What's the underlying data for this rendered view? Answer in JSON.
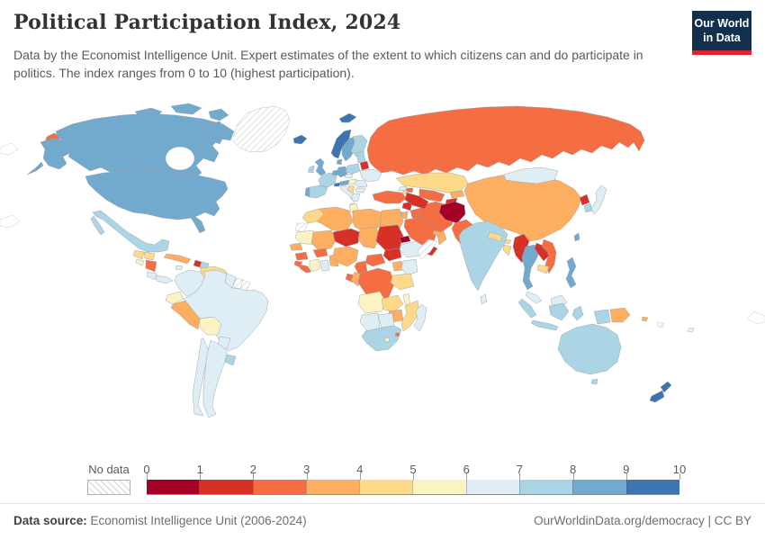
{
  "header": {
    "title": "Political Participation Index, 2024",
    "subtitle": "Data by the Economist Intelligence Unit. Expert estimates of the extent to which citizens can and do participate in politics. The index ranges from 0 to 10 (highest participation).",
    "logo": {
      "line1": "Our World",
      "line2": "in Data",
      "bg_color": "#12304e",
      "stripe_color": "#e0232e"
    }
  },
  "legend": {
    "no_data_label": "No data",
    "tick_labels": [
      "0",
      "1",
      "2",
      "3",
      "4",
      "5",
      "6",
      "7",
      "8",
      "9",
      "10"
    ],
    "bins": [
      "0-1",
      "1-2",
      "2-3",
      "3-4",
      "4-5",
      "5-6",
      "6-7",
      "7-8",
      "8-9",
      "9-10"
    ],
    "bin_colors": {
      "0-1": "#a50026",
      "1-2": "#d73027",
      "2-3": "#f46d43",
      "3-4": "#fdae61",
      "4-5": "#fdda8a",
      "5-6": "#fbf4c2",
      "6-7": "#dfeef4",
      "7-8": "#abd5e5",
      "8-9": "#72aace",
      "9-10": "#3e74b0"
    }
  },
  "footer": {
    "source_label": "Data source:",
    "source_text": " Economist Intelligence Unit (2006-2024)",
    "link_text": "OurWorldinData.org/democracy",
    "separator": " | ",
    "license_text": "CC BY"
  },
  "chart_data": {
    "type": "choropleth_map",
    "title": "Political Participation Index, 2024",
    "value_range": [
      0,
      10
    ],
    "legend_position": "bottom",
    "regions": [
      {
        "id": "canada",
        "name": "Canada",
        "bin": "8-9"
      },
      {
        "id": "usa",
        "name": "United States",
        "bin": "8-9"
      },
      {
        "id": "greenland",
        "name": "Greenland",
        "bin": "no-data"
      },
      {
        "id": "chukotka",
        "name": "Russia (Chukotka)",
        "bin": "2-3"
      },
      {
        "id": "mexico",
        "name": "Mexico",
        "bin": "7-8"
      },
      {
        "id": "guatemala",
        "name": "Guatemala",
        "bin": "4-5"
      },
      {
        "id": "honduras",
        "name": "Honduras",
        "bin": "4-5"
      },
      {
        "id": "el-salvador",
        "name": "El Salvador",
        "bin": "5-6"
      },
      {
        "id": "nicaragua",
        "name": "Nicaragua",
        "bin": "2-3"
      },
      {
        "id": "costa-rica",
        "name": "Costa Rica",
        "bin": "6-7"
      },
      {
        "id": "panama",
        "name": "Panama",
        "bin": "6-7"
      },
      {
        "id": "cuba",
        "name": "Cuba",
        "bin": "3-4"
      },
      {
        "id": "jamaica",
        "name": "Jamaica",
        "bin": "6-7"
      },
      {
        "id": "haiti",
        "name": "Haiti",
        "bin": "1-2"
      },
      {
        "id": "dominican-republic",
        "name": "Dominican Republic",
        "bin": "7-8"
      },
      {
        "id": "colombia",
        "name": "Colombia",
        "bin": "6-7"
      },
      {
        "id": "venezuela",
        "name": "Venezuela",
        "bin": "4-5"
      },
      {
        "id": "guyana",
        "name": "Guyana",
        "bin": "6-7"
      },
      {
        "id": "suriname",
        "name": "Suriname",
        "bin": "no-data"
      },
      {
        "id": "french-guiana",
        "name": "French Guiana",
        "bin": "no-data"
      },
      {
        "id": "ecuador",
        "name": "Ecuador",
        "bin": "5-6"
      },
      {
        "id": "peru",
        "name": "Peru",
        "bin": "3-4"
      },
      {
        "id": "bolivia",
        "name": "Bolivia",
        "bin": "5-6"
      },
      {
        "id": "brazil",
        "name": "Brazil",
        "bin": "6-7"
      },
      {
        "id": "paraguay",
        "name": "Paraguay",
        "bin": "6-7"
      },
      {
        "id": "uruguay",
        "name": "Uruguay",
        "bin": "7-8"
      },
      {
        "id": "argentina",
        "name": "Argentina",
        "bin": "6-7"
      },
      {
        "id": "chile",
        "name": "Chile",
        "bin": "6-7"
      },
      {
        "id": "iceland",
        "name": "Iceland",
        "bin": "9-10"
      },
      {
        "id": "svalbard",
        "name": "Svalbard",
        "bin": "9-10"
      },
      {
        "id": "norway",
        "name": "Norway",
        "bin": "9-10"
      },
      {
        "id": "sweden",
        "name": "Sweden",
        "bin": "8-9"
      },
      {
        "id": "finland",
        "name": "Finland",
        "bin": "7-8"
      },
      {
        "id": "denmark",
        "name": "Denmark",
        "bin": "8-9"
      },
      {
        "id": "united-kingdom",
        "name": "United Kingdom",
        "bin": "8-9"
      },
      {
        "id": "ireland",
        "name": "Ireland",
        "bin": "7-8"
      },
      {
        "id": "portugal",
        "name": "Portugal",
        "bin": "8-9"
      },
      {
        "id": "spain",
        "name": "Spain",
        "bin": "7-8"
      },
      {
        "id": "france",
        "name": "France",
        "bin": "7-8"
      },
      {
        "id": "belgium-netherlands",
        "name": "Belgium/Netherlands",
        "bin": "8-9"
      },
      {
        "id": "germany",
        "name": "Germany",
        "bin": "8-9"
      },
      {
        "id": "switzerland",
        "name": "Switzerland",
        "bin": "9-10"
      },
      {
        "id": "austria",
        "name": "Austria",
        "bin": "8-9"
      },
      {
        "id": "italy",
        "name": "Italy",
        "bin": "6-7"
      },
      {
        "id": "czechia",
        "name": "Czechia",
        "bin": "6-7"
      },
      {
        "id": "poland",
        "name": "Poland",
        "bin": "7-8"
      },
      {
        "id": "baltics",
        "name": "Baltic states",
        "bin": "7-8"
      },
      {
        "id": "belarus",
        "name": "Belarus",
        "bin": "1-2"
      },
      {
        "id": "ukraine",
        "name": "Ukraine",
        "bin": "6-7"
      },
      {
        "id": "hungary",
        "name": "Hungary",
        "bin": "5-6"
      },
      {
        "id": "romania",
        "name": "Romania",
        "bin": "6-7"
      },
      {
        "id": "balkans",
        "name": "Western Balkans",
        "bin": "4-5"
      },
      {
        "id": "bulgaria",
        "name": "Bulgaria",
        "bin": "6-7"
      },
      {
        "id": "greece",
        "name": "Greece",
        "bin": "6-7"
      },
      {
        "id": "russia",
        "name": "Russia",
        "bin": "2-3"
      },
      {
        "id": "turkey",
        "name": "Turkey",
        "bin": "2-3"
      },
      {
        "id": "georgia",
        "name": "Georgia",
        "bin": "6-7"
      },
      {
        "id": "azerbaijan",
        "name": "Azerbaijan",
        "bin": "2-3"
      },
      {
        "id": "armenia",
        "name": "Armenia",
        "bin": "4-5"
      },
      {
        "id": "syria",
        "name": "Syria",
        "bin": "1-2"
      },
      {
        "id": "israel",
        "name": "Israel",
        "bin": "7-8"
      },
      {
        "id": "jordan",
        "name": "Jordan",
        "bin": "3-4"
      },
      {
        "id": "iraq",
        "name": "Iraq",
        "bin": "2-3"
      },
      {
        "id": "iran",
        "name": "Iran",
        "bin": "2-3"
      },
      {
        "id": "saudi-arabia",
        "name": "Saudi Arabia",
        "bin": "2-3"
      },
      {
        "id": "yemen",
        "name": "Yemen",
        "bin": "1-2"
      },
      {
        "id": "oman",
        "name": "Oman",
        "bin": "3-4"
      },
      {
        "id": "uae",
        "name": "United Arab Emirates",
        "bin": "3-4"
      },
      {
        "id": "kazakhstan",
        "name": "Kazakhstan",
        "bin": "4-5"
      },
      {
        "id": "uzbekistan",
        "name": "Uzbekistan",
        "bin": "2-3"
      },
      {
        "id": "turkmenistan",
        "name": "Turkmenistan",
        "bin": "1-2"
      },
      {
        "id": "kyrgyzstan",
        "name": "Kyrgyzstan",
        "bin": "3-4"
      },
      {
        "id": "tajikistan",
        "name": "Tajikistan",
        "bin": "1-2"
      },
      {
        "id": "afghanistan",
        "name": "Afghanistan",
        "bin": "0-1"
      },
      {
        "id": "pakistan",
        "name": "Pakistan",
        "bin": "2-3"
      },
      {
        "id": "india",
        "name": "India",
        "bin": "7-8"
      },
      {
        "id": "nepal",
        "name": "Nepal",
        "bin": "4-5"
      },
      {
        "id": "bhutan",
        "name": "Bhutan",
        "bin": "4-5"
      },
      {
        "id": "bangladesh",
        "name": "Bangladesh",
        "bin": "4-5"
      },
      {
        "id": "sri-lanka",
        "name": "Sri Lanka",
        "bin": "6-7"
      },
      {
        "id": "china",
        "name": "China",
        "bin": "3-4"
      },
      {
        "id": "mongolia",
        "name": "Mongolia",
        "bin": "6-7"
      },
      {
        "id": "north-korea",
        "name": "North Korea",
        "bin": "1-2"
      },
      {
        "id": "south-korea",
        "name": "South Korea",
        "bin": "7-8"
      },
      {
        "id": "japan",
        "name": "Japan",
        "bin": "6-7"
      },
      {
        "id": "taiwan",
        "name": "Taiwan",
        "bin": "8-9"
      },
      {
        "id": "myanmar",
        "name": "Myanmar",
        "bin": "1-2"
      },
      {
        "id": "thailand",
        "name": "Thailand",
        "bin": "8-9"
      },
      {
        "id": "laos",
        "name": "Laos",
        "bin": "1-2"
      },
      {
        "id": "vietnam",
        "name": "Vietnam",
        "bin": "2-3"
      },
      {
        "id": "cambodia",
        "name": "Cambodia",
        "bin": "4-5"
      },
      {
        "id": "malaysia",
        "name": "Malaysia",
        "bin": "6-7"
      },
      {
        "id": "indonesia",
        "name": "Indonesia",
        "bin": "7-8"
      },
      {
        "id": "philippines",
        "name": "Philippines",
        "bin": "8-9"
      },
      {
        "id": "papua-new-guinea",
        "name": "Papua New Guinea",
        "bin": "3-4"
      },
      {
        "id": "morocco",
        "name": "Morocco",
        "bin": "4-5"
      },
      {
        "id": "western-sahara",
        "name": "Western Sahara",
        "bin": "no-data"
      },
      {
        "id": "algeria",
        "name": "Algeria",
        "bin": "3-4"
      },
      {
        "id": "tunisia",
        "name": "Tunisia",
        "bin": "5-6"
      },
      {
        "id": "libya",
        "name": "Libya",
        "bin": "3-4"
      },
      {
        "id": "egypt",
        "name": "Egypt",
        "bin": "3-4"
      },
      {
        "id": "mauritania",
        "name": "Mauritania",
        "bin": "5-6"
      },
      {
        "id": "senegal",
        "name": "Senegal",
        "bin": "3-4"
      },
      {
        "id": "guinea",
        "name": "Guinea",
        "bin": "2-3"
      },
      {
        "id": "sierra-leone",
        "name": "Sierra Leone",
        "bin": "2-3"
      },
      {
        "id": "liberia",
        "name": "Liberia",
        "bin": "2-3"
      },
      {
        "id": "ivory-coast",
        "name": "Cote d'Ivoire",
        "bin": "5-6"
      },
      {
        "id": "ghana",
        "name": "Ghana",
        "bin": "6-7"
      },
      {
        "id": "burkina-faso",
        "name": "Burkina Faso",
        "bin": "2-3"
      },
      {
        "id": "togo-benin",
        "name": "Togo/Benin",
        "bin": "3-4"
      },
      {
        "id": "mali",
        "name": "Mali",
        "bin": "3-4"
      },
      {
        "id": "niger",
        "name": "Niger",
        "bin": "1-2"
      },
      {
        "id": "nigeria",
        "name": "Nigeria",
        "bin": "3-4"
      },
      {
        "id": "chad",
        "name": "Chad",
        "bin": "3-4"
      },
      {
        "id": "sudan",
        "name": "Sudan",
        "bin": "1-2"
      },
      {
        "id": "eritrea",
        "name": "Eritrea",
        "bin": "0-1"
      },
      {
        "id": "ethiopia",
        "name": "Ethiopia",
        "bin": "6-7"
      },
      {
        "id": "somalia",
        "name": "Somalia",
        "bin": "no-data"
      },
      {
        "id": "cameroon",
        "name": "Cameroon",
        "bin": "2-3"
      },
      {
        "id": "central-african-republic",
        "name": "Central African Republic",
        "bin": "2-3"
      },
      {
        "id": "south-sudan",
        "name": "South Sudan",
        "bin": "1-2"
      },
      {
        "id": "uganda",
        "name": "Uganda",
        "bin": "3-4"
      },
      {
        "id": "kenya",
        "name": "Kenya",
        "bin": "6-7"
      },
      {
        "id": "drc",
        "name": "Democratic Republic of Congo",
        "bin": "2-3"
      },
      {
        "id": "congo",
        "name": "Congo",
        "bin": "3-4"
      },
      {
        "id": "gabon",
        "name": "Gabon",
        "bin": "2-3"
      },
      {
        "id": "tanzania",
        "name": "Tanzania",
        "bin": "4-5"
      },
      {
        "id": "angola",
        "name": "Angola",
        "bin": "5-6"
      },
      {
        "id": "zambia",
        "name": "Zambia",
        "bin": "4-5"
      },
      {
        "id": "malawi",
        "name": "Malawi",
        "bin": "5-6"
      },
      {
        "id": "mozambique",
        "name": "Mozambique",
        "bin": "4-5"
      },
      {
        "id": "zimbabwe",
        "name": "Zimbabwe",
        "bin": "3-4"
      },
      {
        "id": "botswana",
        "name": "Botswana",
        "bin": "6-7"
      },
      {
        "id": "namibia",
        "name": "Namibia",
        "bin": "6-7"
      },
      {
        "id": "south-africa",
        "name": "South Africa",
        "bin": "7-8"
      },
      {
        "id": "lesotho",
        "name": "Lesotho",
        "bin": "5-6"
      },
      {
        "id": "eswatini",
        "name": "Eswatini",
        "bin": "2-3"
      },
      {
        "id": "madagascar",
        "name": "Madagascar",
        "bin": "6-7"
      },
      {
        "id": "australia",
        "name": "Australia",
        "bin": "7-8"
      },
      {
        "id": "new-zealand",
        "name": "New Zealand",
        "bin": "9-10"
      },
      {
        "id": "solomon-islands",
        "name": "Solomon Islands",
        "bin": "3-4"
      },
      {
        "id": "fiji",
        "name": "Fiji",
        "bin": "5-6"
      },
      {
        "id": "new-caledonia",
        "name": "New Caledonia",
        "bin": "no-data"
      }
    ]
  }
}
